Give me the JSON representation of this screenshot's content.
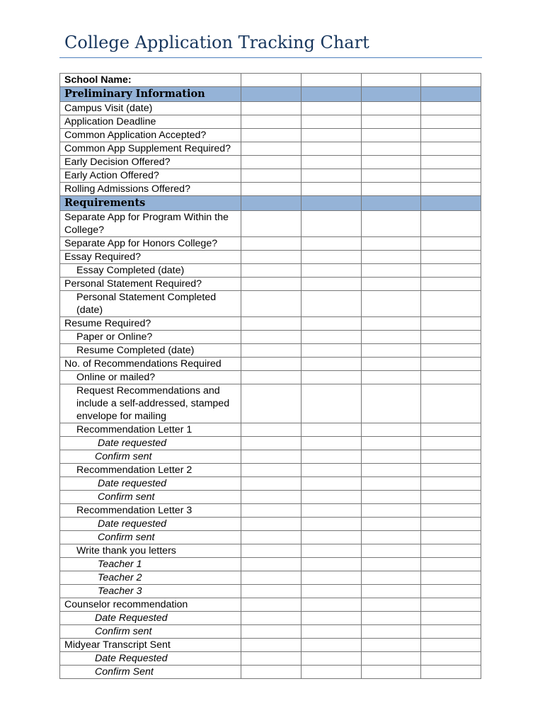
{
  "title": "College Application Tracking Chart",
  "table": {
    "school_columns": 4,
    "rows": [
      {
        "text": "School Name:",
        "type": "school"
      },
      {
        "text": "Preliminary Information",
        "type": "section"
      },
      {
        "text": "Campus Visit (date)",
        "indent": 0
      },
      {
        "text": "Application Deadline",
        "indent": 0
      },
      {
        "text": "Common Application Accepted?",
        "indent": 0
      },
      {
        "text": "Common App Supplement Required?",
        "indent": 0
      },
      {
        "text": "Early Decision Offered?",
        "indent": 0
      },
      {
        "text": "Early Action Offered?",
        "indent": 0
      },
      {
        "text": "Rolling Admissions Offered?",
        "indent": 0
      },
      {
        "text": "Requirements",
        "type": "section"
      },
      {
        "text": "Separate App for Program Within the College?",
        "indent": 0
      },
      {
        "text": "Separate App for Honors College?",
        "indent": 0
      },
      {
        "text": "Essay Required?",
        "indent": 0
      },
      {
        "text": "Essay Completed (date)",
        "indent": 1
      },
      {
        "text": "Personal Statement Required?",
        "indent": 0
      },
      {
        "text": "Personal Statement Completed (date)",
        "indent": 1
      },
      {
        "text": "Resume Required?",
        "indent": 0
      },
      {
        "text": "Paper or Online?",
        "indent": 1
      },
      {
        "text": "Resume Completed (date)",
        "indent": 1
      },
      {
        "text": "No. of Recommendations Required",
        "indent": 0
      },
      {
        "text": "Online or mailed?",
        "indent": 1
      },
      {
        "text": "Request Recommendations and include a self-addressed, stamped envelope for mailing",
        "indent": 1
      },
      {
        "text": "Recommendation Letter 1",
        "indent": 1
      },
      {
        "text": "Date requested",
        "indent": 2
      },
      {
        "text": "Confirm sent",
        "indent": 3
      },
      {
        "text": "Recommendation Letter 2",
        "indent": 1
      },
      {
        "text": "Date requested",
        "indent": 2
      },
      {
        "text": "Confirm sent",
        "indent": 2
      },
      {
        "text": "Recommendation Letter 3",
        "indent": 1
      },
      {
        "text": "Date requested",
        "indent": 2
      },
      {
        "text": "Confirm sent",
        "indent": 2
      },
      {
        "text": "Write thank you letters",
        "indent": 1
      },
      {
        "text": "Teacher 1",
        "indent": 2
      },
      {
        "text": "Teacher 2",
        "indent": 2
      },
      {
        "text": "Teacher 3",
        "indent": 2
      },
      {
        "text": "Counselor recommendation",
        "indent": 0
      },
      {
        "text": "Date Requested",
        "indent": 3
      },
      {
        "text": "Confirm sent",
        "indent": 3
      },
      {
        "text": "Midyear Transcript Sent",
        "indent": 0
      },
      {
        "text": "Date Requested",
        "indent": 3
      },
      {
        "text": "Confirm Sent",
        "indent": 3
      }
    ]
  }
}
